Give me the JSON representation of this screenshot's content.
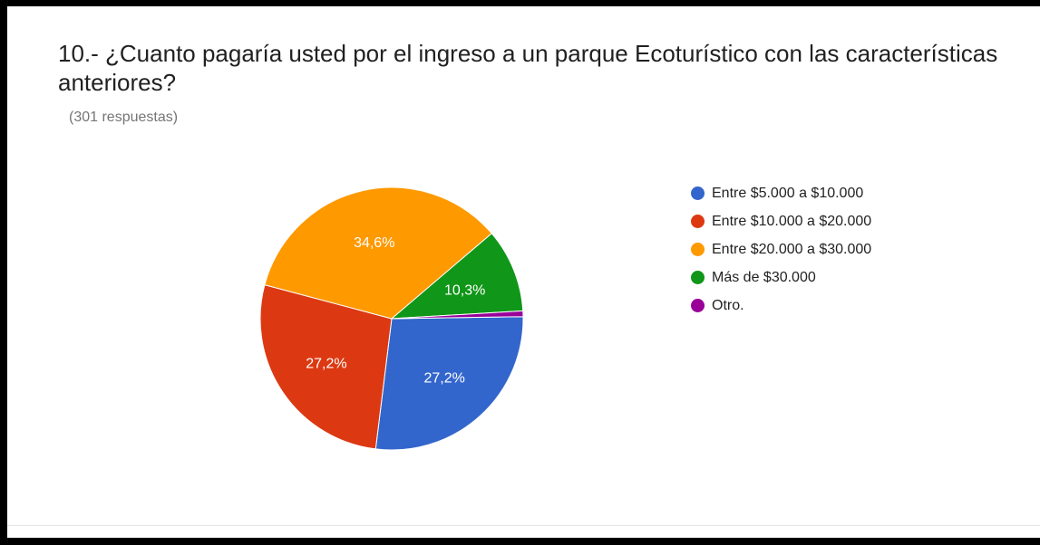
{
  "chart_data": {
    "type": "pie",
    "title": "10.- ¿Cuanto pagaría usted por el ingreso a un parque Ecoturístico con las características anteriores?",
    "subtitle": "(301 respuestas)",
    "legend_position": "right",
    "slices": [
      {
        "label": "Entre $5.000 a $10.000",
        "value": 27.2,
        "display": "27,2%",
        "color": "#3366cc"
      },
      {
        "label": "Entre $10.000 a $20.000",
        "value": 27.2,
        "display": "27,2%",
        "color": "#dc3912"
      },
      {
        "label": "Entre $20.000 a $30.000",
        "value": 34.6,
        "display": "34,6%",
        "color": "#ff9900"
      },
      {
        "label": "Más de $30.000",
        "value": 10.3,
        "display": "10,3%",
        "color": "#109618"
      },
      {
        "label": "Otro.",
        "value": 0.7,
        "display": "",
        "color": "#990099"
      }
    ]
  }
}
